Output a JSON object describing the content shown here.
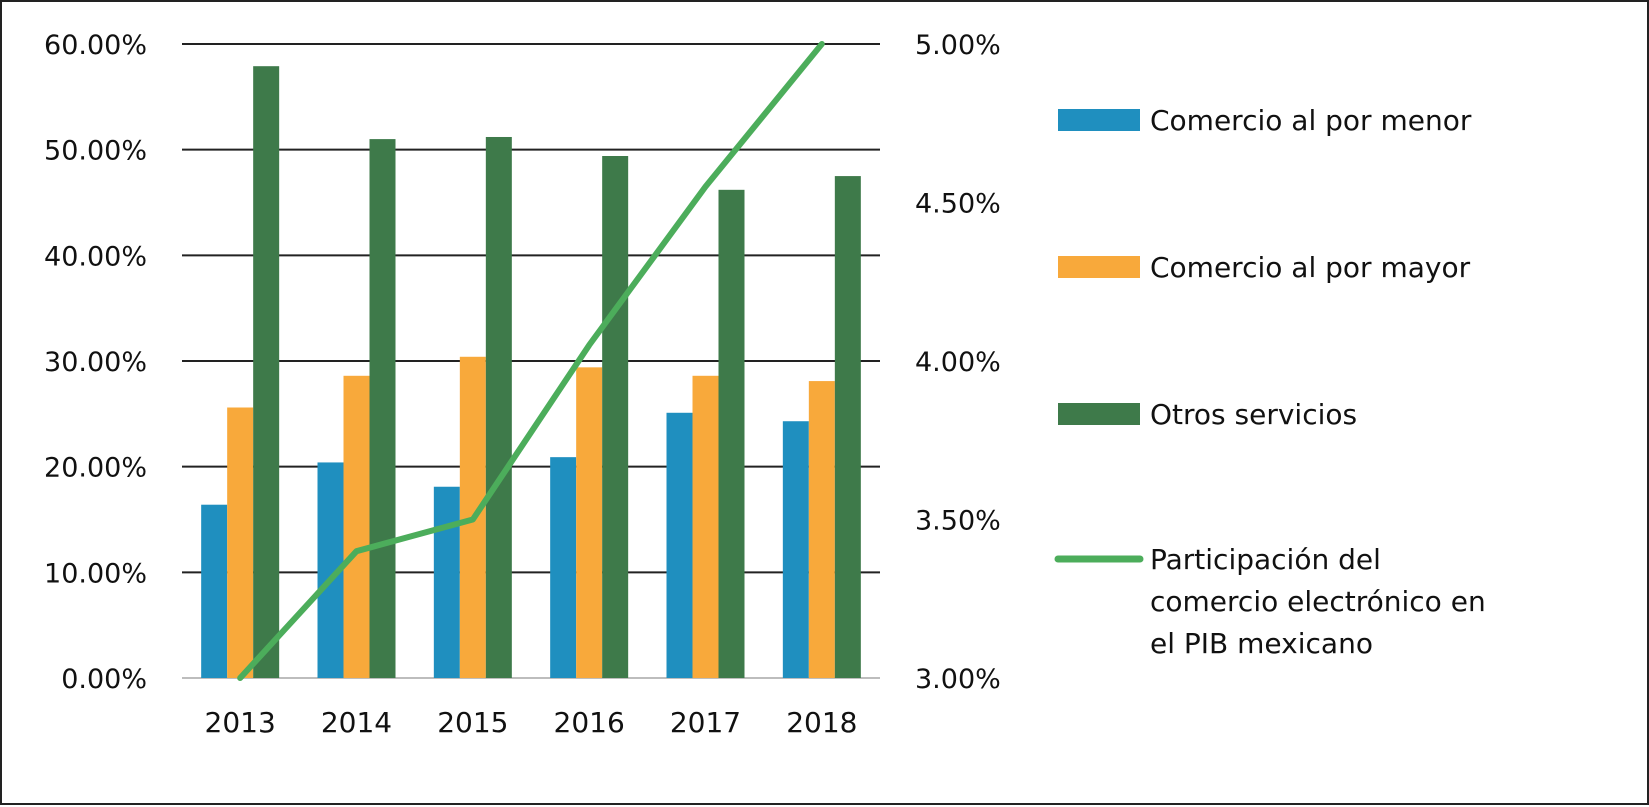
{
  "chart_data": {
    "type": "bar",
    "title": "",
    "xlabel": "",
    "ylabel": "",
    "categories": [
      "2013",
      "2014",
      "2015",
      "2016",
      "2017",
      "2018"
    ],
    "ylim": [
      0,
      60
    ],
    "yticks": [
      "0.00%",
      "10.00%",
      "20.00%",
      "30.00%",
      "40.00%",
      "50.00%",
      "60.00%"
    ],
    "y2lim": [
      3.0,
      5.0
    ],
    "y2ticks": [
      "3.00%",
      "3.50%",
      "4.00%",
      "4.50%",
      "5.00%"
    ],
    "grid": true,
    "legend_position": "right",
    "series": [
      {
        "name": "Comercio al por menor",
        "type": "bar",
        "axis": "left",
        "color": "#1f8fbf",
        "values": [
          16.4,
          20.4,
          18.1,
          20.9,
          25.1,
          24.3
        ]
      },
      {
        "name": "Comercio al por mayor",
        "type": "bar",
        "axis": "left",
        "color": "#f8a93b",
        "values": [
          25.6,
          28.6,
          30.4,
          29.4,
          28.6,
          28.1
        ]
      },
      {
        "name": "Otros servicios",
        "type": "bar",
        "axis": "left",
        "color": "#3e7a4a",
        "values": [
          57.9,
          51.0,
          51.2,
          49.4,
          46.2,
          47.5
        ]
      },
      {
        "name": "Participación del comercio electrónico en el PIB mexicano",
        "type": "line",
        "axis": "right",
        "color": "#4cad5b",
        "values": [
          3.0,
          3.4,
          3.5,
          4.05,
          4.55,
          5.0
        ]
      }
    ],
    "legend_lines": [
      [
        "Comercio al por menor"
      ],
      [
        "Comercio al por mayor"
      ],
      [
        "Otros servicios"
      ],
      [
        "Participación del",
        "comercio electrónico en",
        "el PIB mexicano"
      ]
    ]
  }
}
